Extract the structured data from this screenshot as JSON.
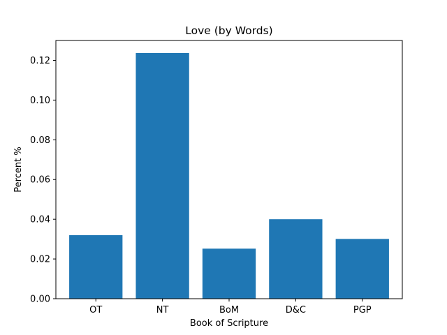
{
  "chart_data": {
    "type": "bar",
    "title": "Love (by Words)",
    "xlabel": "Book of Scripture",
    "ylabel": "Percent %",
    "categories": [
      "OT",
      "NT",
      "BoM",
      "D&C",
      "PGP"
    ],
    "values": [
      0.032,
      0.1237,
      0.0252,
      0.04,
      0.0301
    ],
    "ylim": [
      0,
      0.13
    ],
    "yticks": [
      "0.00",
      "0.02",
      "0.04",
      "0.06",
      "0.08",
      "0.10",
      "0.12"
    ],
    "grid": false,
    "bar_color": "#1f77b4"
  }
}
